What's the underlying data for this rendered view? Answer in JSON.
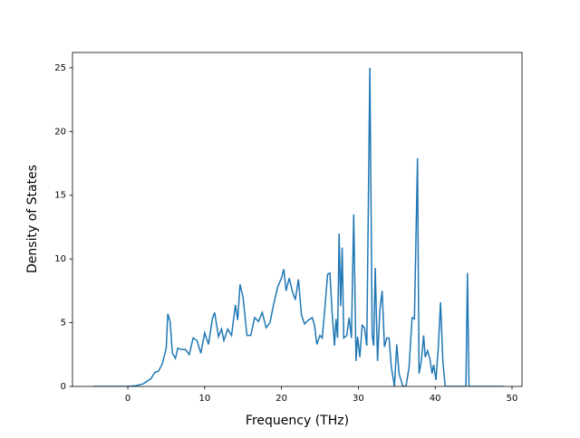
{
  "chart_data": {
    "type": "line",
    "xlabel": "Frequency (THz)",
    "ylabel": "Density of States",
    "x": [
      -4.5,
      0,
      1,
      2,
      3,
      3.5,
      4,
      4.5,
      5,
      5.2,
      5.5,
      5.8,
      6.2,
      6.5,
      7,
      7.5,
      8,
      8.5,
      9,
      9.5,
      10,
      10.5,
      11,
      11.3,
      11.8,
      12.2,
      12.5,
      13,
      13.5,
      14,
      14.3,
      14.6,
      15,
      15.5,
      16,
      16.5,
      17,
      17.5,
      18,
      18.5,
      19,
      19.5,
      20,
      20.3,
      20.6,
      21,
      21.4,
      21.8,
      22.2,
      22.6,
      23,
      23.5,
      24,
      24.3,
      24.6,
      25,
      25.3,
      25.6,
      26,
      26.3,
      26.6,
      26.9,
      27.1,
      27.3,
      27.5,
      27.7,
      27.9,
      28.1,
      28.5,
      28.8,
      29.1,
      29.4,
      29.7,
      29.9,
      30.2,
      30.5,
      30.8,
      31.1,
      31.5,
      31.8,
      32.0,
      32.2,
      32.5,
      32.8,
      33.1,
      33.4,
      33.7,
      34.0,
      34.3,
      34.7,
      35.0,
      35.3,
      35.8,
      36.2,
      36.6,
      37.0,
      37.3,
      37.7,
      37.9,
      38.2,
      38.5,
      38.7,
      39.0,
      39.3,
      39.6,
      39.8,
      40.1,
      40.4,
      40.7,
      41.0,
      41.3,
      44.0,
      44.2,
      44.4,
      48.9
    ],
    "series": [
      {
        "color": "#1f77b4",
        "values": [
          0,
          0,
          0.05,
          0.2,
          0.6,
          1.1,
          1.2,
          1.8,
          3,
          5.7,
          5.1,
          2.6,
          2.2,
          3.0,
          2.9,
          2.9,
          2.5,
          3.8,
          3.6,
          2.6,
          4.2,
          3.3,
          5.3,
          5.8,
          3.9,
          4.5,
          3.6,
          4.5,
          4.0,
          6.4,
          5.2,
          8.0,
          7.0,
          4.0,
          4.0,
          5.4,
          5.1,
          5.8,
          4.6,
          5.0,
          6.5,
          7.8,
          8.5,
          9.2,
          7.5,
          8.5,
          7.5,
          6.8,
          8.4,
          5.6,
          4.9,
          5.2,
          5.4,
          4.8,
          3.3,
          4.0,
          3.8,
          5.8,
          8.8,
          8.9,
          5.7,
          3.2,
          5.3,
          3.8,
          12.0,
          6.3,
          10.9,
          3.8,
          4.0,
          5.4,
          3.8,
          13.5,
          2.0,
          3.9,
          2.3,
          4.8,
          4.6,
          3.2,
          25.0,
          4.0,
          3.2,
          9.3,
          2.0,
          6.0,
          7.5,
          3.1,
          3.8,
          3.8,
          1.5,
          0,
          3.3,
          1.0,
          0,
          0,
          1.5,
          5.4,
          5.3,
          17.9,
          1.0,
          2.0,
          4.0,
          2.3,
          2.8,
          2.2,
          1.0,
          1.7,
          0.5,
          3.0,
          6.6,
          2.0,
          0,
          0,
          8.9,
          0,
          0
        ]
      }
    ],
    "xlim": [
      -7.2,
      51.3
    ],
    "xticks": [
      0,
      10,
      20,
      30,
      40,
      50
    ],
    "ylim": [
      0,
      26.2
    ],
    "yticks": [
      0,
      5,
      10,
      15,
      20,
      25
    ]
  }
}
